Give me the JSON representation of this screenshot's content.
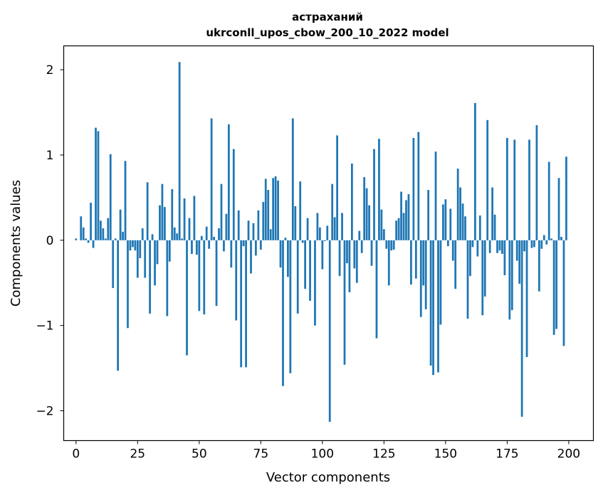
{
  "chart_data": {
    "type": "bar",
    "title": "астраханий",
    "subtitle": "ukrconll_upos_cbow_200_10_2022 model",
    "xlabel": "Vector components",
    "ylabel": "Components values",
    "xlim": [
      -5,
      210
    ],
    "ylim": [
      -2.35,
      2.28
    ],
    "xticks": [
      0,
      25,
      50,
      75,
      100,
      125,
      150,
      175,
      200
    ],
    "yticks": [
      -2,
      -1,
      0,
      1,
      2
    ],
    "xtick_labels": [
      "0",
      "25",
      "50",
      "75",
      "100",
      "125",
      "150",
      "175",
      "200"
    ],
    "ytick_labels": [
      "−2",
      "−1",
      "0",
      "1",
      "2"
    ],
    "bar_color": "#1f77b4",
    "grid": false,
    "legend": false,
    "x": [
      0,
      1,
      2,
      3,
      4,
      5,
      6,
      7,
      8,
      9,
      10,
      11,
      12,
      13,
      14,
      15,
      16,
      17,
      18,
      19,
      20,
      21,
      22,
      23,
      24,
      25,
      26,
      27,
      28,
      29,
      30,
      31,
      32,
      33,
      34,
      35,
      36,
      37,
      38,
      39,
      40,
      41,
      42,
      43,
      44,
      45,
      46,
      47,
      48,
      49,
      50,
      51,
      52,
      53,
      54,
      55,
      56,
      57,
      58,
      59,
      60,
      61,
      62,
      63,
      64,
      65,
      66,
      67,
      68,
      69,
      70,
      71,
      72,
      73,
      74,
      75,
      76,
      77,
      78,
      79,
      80,
      81,
      82,
      83,
      84,
      85,
      86,
      87,
      88,
      89,
      90,
      91,
      92,
      93,
      94,
      95,
      96,
      97,
      98,
      99,
      100,
      101,
      102,
      103,
      104,
      105,
      106,
      107,
      108,
      109,
      110,
      111,
      112,
      113,
      114,
      115,
      116,
      117,
      118,
      119,
      120,
      121,
      122,
      123,
      124,
      125,
      126,
      127,
      128,
      129,
      130,
      131,
      132,
      133,
      134,
      135,
      136,
      137,
      138,
      139,
      140,
      141,
      142,
      143,
      144,
      145,
      146,
      147,
      148,
      149,
      150,
      151,
      152,
      153,
      154,
      155,
      156,
      157,
      158,
      159,
      160,
      161,
      162,
      163,
      164,
      165,
      166,
      167,
      168,
      169,
      170,
      171,
      172,
      173,
      174,
      175,
      176,
      177,
      178,
      179,
      180,
      181,
      182,
      183,
      184,
      185,
      186,
      187,
      188,
      189,
      190,
      191,
      192,
      193,
      194,
      195,
      196,
      197,
      198,
      199
    ],
    "values": [
      0.02,
      0.0,
      0.28,
      0.15,
      0.02,
      -0.03,
      0.44,
      -0.09,
      1.32,
      1.28,
      0.23,
      0.14,
      0.02,
      0.26,
      1.01,
      -0.56,
      0.02,
      -1.53,
      0.36,
      0.1,
      0.93,
      -1.03,
      -0.12,
      -0.08,
      -0.12,
      -0.44,
      -0.21,
      0.14,
      -0.44,
      0.68,
      -0.86,
      0.07,
      -0.53,
      -0.28,
      0.41,
      0.66,
      0.39,
      -0.89,
      -0.25,
      0.6,
      0.15,
      0.08,
      2.09,
      0.02,
      0.49,
      -1.35,
      0.26,
      -0.16,
      0.52,
      -0.17,
      -0.83,
      0.05,
      -0.87,
      0.16,
      -0.1,
      1.43,
      0.04,
      -0.77,
      0.14,
      0.66,
      -0.13,
      0.31,
      1.36,
      -0.32,
      1.07,
      -0.94,
      0.35,
      -1.49,
      -0.07,
      -1.49,
      0.23,
      -0.39,
      0.2,
      -0.18,
      0.35,
      -0.11,
      0.45,
      0.72,
      0.59,
      0.13,
      0.73,
      0.75,
      0.7,
      -0.32,
      -1.71,
      0.03,
      -0.43,
      -1.56,
      1.43,
      0.4,
      -0.86,
      0.69,
      -0.03,
      -0.57,
      0.26,
      -0.71,
      0.0,
      -1.0,
      0.32,
      0.15,
      -0.34,
      -0.01,
      0.17,
      -2.13,
      0.66,
      0.27,
      1.23,
      -0.42,
      0.32,
      -1.46,
      -0.27,
      -0.61,
      0.9,
      -0.33,
      -0.5,
      0.11,
      -0.15,
      0.74,
      0.61,
      0.41,
      -0.3,
      1.07,
      -1.15,
      1.19,
      0.36,
      0.13,
      -0.1,
      -0.53,
      -0.12,
      -0.11,
      0.23,
      0.26,
      0.57,
      0.32,
      0.47,
      0.54,
      -0.52,
      1.2,
      -0.45,
      1.27,
      -0.9,
      -0.53,
      -0.81,
      0.59,
      -1.47,
      -1.58,
      1.04,
      -1.55,
      -0.99,
      0.42,
      0.48,
      -0.07,
      0.37,
      -0.24,
      -0.57,
      0.84,
      0.62,
      0.43,
      0.28,
      -0.92,
      -0.42,
      -0.08,
      1.61,
      -0.19,
      0.29,
      -0.88,
      -0.66,
      1.41,
      -0.15,
      0.62,
      0.3,
      -0.15,
      -0.12,
      -0.16,
      -0.41,
      1.2,
      -0.93,
      -0.82,
      1.18,
      -0.24,
      -0.51,
      -2.07,
      -0.13,
      -1.37,
      1.18,
      -0.09,
      -0.08,
      1.35,
      -0.6,
      -0.1,
      0.06,
      -0.05,
      0.92,
      0.02,
      -1.11,
      -1.04,
      0.73,
      0.04,
      -1.24,
      0.98
    ]
  }
}
